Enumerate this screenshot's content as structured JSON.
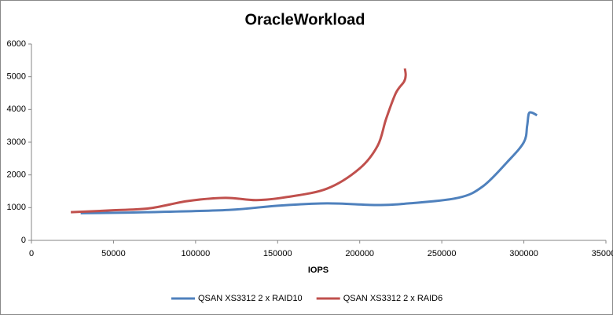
{
  "chart_data": {
    "type": "line",
    "title": "OracleWorkload",
    "x_label": "IOPS",
    "xlim": [
      0,
      350000
    ],
    "xticks": [
      0,
      50000,
      100000,
      150000,
      200000,
      250000,
      300000,
      350000
    ],
    "ylim": [
      0,
      6000
    ],
    "yticks": [
      0,
      1000,
      2000,
      3000,
      4000,
      5000,
      6000
    ],
    "legend": "bottom",
    "series": [
      {
        "name": "QSAN XS3312 2 x RAID10",
        "color": "#4f81bd",
        "x": [
          30000,
          70000,
          120000,
          150000,
          180000,
          210000,
          230000,
          260000,
          275000,
          290000,
          300000,
          302000,
          303000,
          305000,
          308000
        ],
        "values": [
          830,
          860,
          930,
          1060,
          1130,
          1080,
          1130,
          1300,
          1650,
          2400,
          3000,
          3500,
          3870,
          3900,
          3820
        ]
      },
      {
        "name": "QSAN XS3312 2 x RAID6",
        "color": "#c0504d",
        "x": [
          24000,
          50000,
          72000,
          95000,
          118000,
          137000,
          155000,
          180000,
          200000,
          211000,
          216000,
          222000,
          227000,
          228000,
          227500
        ],
        "values": [
          860,
          920,
          980,
          1200,
          1300,
          1230,
          1320,
          1580,
          2200,
          2900,
          3700,
          4500,
          4850,
          5050,
          5250
        ]
      }
    ]
  }
}
